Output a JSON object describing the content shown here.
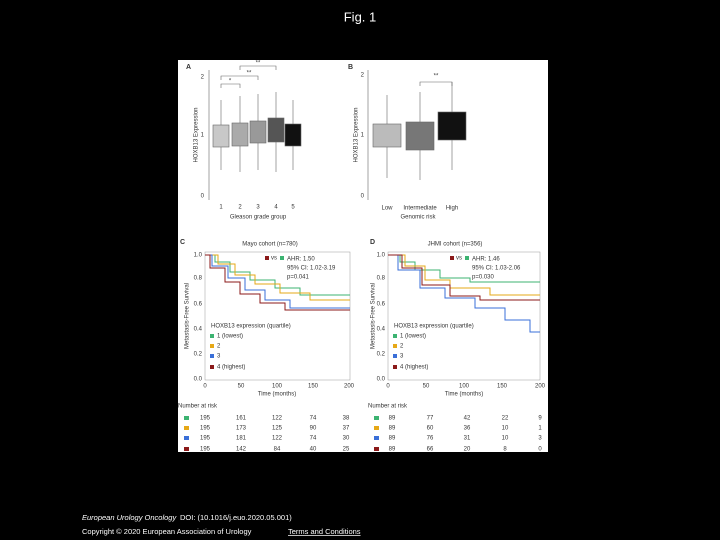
{
  "header": {
    "title": "Fig. 1"
  },
  "figure": {
    "panels": [
      {
        "label": "A",
        "y_label": "HOXB13 Expression",
        "yticks": [
          "0",
          "1",
          "2"
        ],
        "categories": [
          "1",
          "2",
          "3",
          "4",
          "5"
        ],
        "x_label": "Gleason grade group",
        "significance": [
          "*",
          "**",
          "**"
        ]
      },
      {
        "label": "B",
        "y_label": "HOXB13 Expression",
        "yticks": [
          "0",
          "1",
          "2"
        ],
        "categories": [
          "Low",
          "Intermediate",
          "High"
        ],
        "x_label": "Genomic risk",
        "significance": [
          "**"
        ]
      },
      {
        "label": "C",
        "title": "Mayo cohort (n=780)",
        "vs": "vs",
        "stats": [
          "AHR: 1.50",
          "95% CI: 1.02-3.19",
          "p=0.041"
        ],
        "y_label": "Metastasis-Free Survival",
        "x_label": "Time (months)",
        "xticks": [
          "0",
          "50",
          "100",
          "150",
          "200"
        ],
        "yticks": [
          "0.0",
          "0.2",
          "0.4",
          "0.6",
          "0.8",
          "1.0"
        ],
        "legend_title": "HOXB13 expression (quartile)",
        "legend": [
          "1 (lowest)",
          "2",
          "3",
          "4 (highest)"
        ],
        "risk_title": "Number at risk",
        "risk_rows": [
          [
            195,
            161,
            122,
            74,
            38
          ],
          [
            195,
            173,
            125,
            90,
            37
          ],
          [
            195,
            181,
            122,
            74,
            30
          ],
          [
            195,
            142,
            84,
            40,
            25
          ]
        ]
      },
      {
        "label": "D",
        "title": "JHMI cohort (n=356)",
        "vs": "vs",
        "stats": [
          "AHR: 1.46",
          "95% CI: 1.03-2.06",
          "p=0.030"
        ],
        "y_label": "Metastasis-Free Survival",
        "x_label": "Time (months)",
        "xticks": [
          "0",
          "50",
          "100",
          "150",
          "200"
        ],
        "yticks": [
          "0.0",
          "0.2",
          "0.4",
          "0.6",
          "0.8",
          "1.0"
        ],
        "legend_title": "HOXB13 expression (quartile)",
        "legend": [
          "1 (lowest)",
          "2",
          "3",
          "4 (highest)"
        ],
        "risk_title": "Number at risk",
        "risk_rows": [
          [
            89,
            77,
            42,
            22,
            9
          ],
          [
            89,
            60,
            36,
            10,
            1
          ],
          [
            89,
            76,
            31,
            10,
            3
          ],
          [
            89,
            66,
            20,
            8,
            0
          ]
        ]
      }
    ]
  },
  "footer": {
    "journal": "European Urology Oncology",
    "doi": "DOI: (10.1016/j.euo.2020.05.001)",
    "copyright": "Copyright © 2020 European Association of Urology",
    "link": "Terms and Conditions"
  }
}
